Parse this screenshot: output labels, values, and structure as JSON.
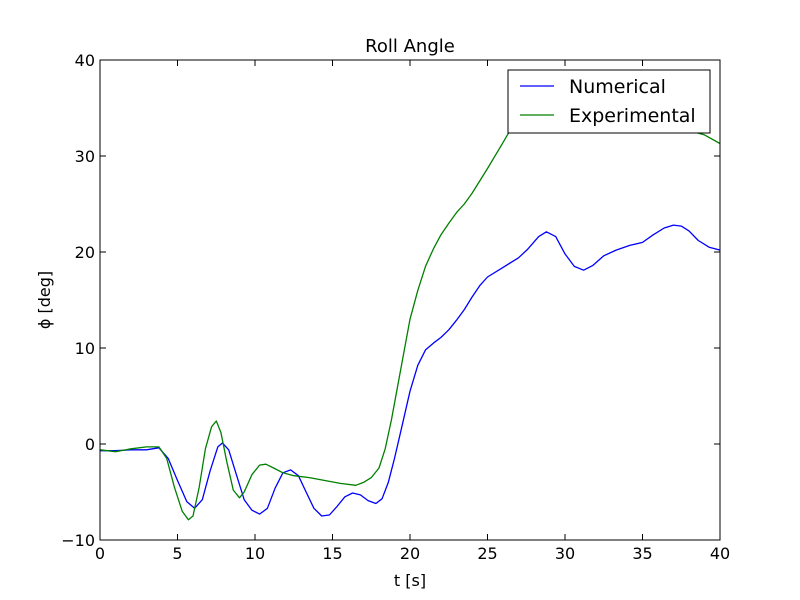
{
  "chart_data": {
    "type": "line",
    "title": "Roll Angle",
    "xlabel": "t [s]",
    "ylabel": "ϕ [deg]",
    "xlim": [
      0,
      40
    ],
    "ylim": [
      -10,
      40
    ],
    "xticks": [
      0,
      5,
      10,
      15,
      20,
      25,
      30,
      35,
      40
    ],
    "yticks": [
      -10,
      0,
      10,
      20,
      30,
      40
    ],
    "grid": false,
    "legend_position": "top-right",
    "series": [
      {
        "name": "Numerical",
        "color": "#0000ff",
        "x": [
          0,
          1,
          2,
          3,
          3.8,
          4.4,
          5,
          5.6,
          6.1,
          6.6,
          7.1,
          7.6,
          7.9,
          8.3,
          8.8,
          9.3,
          9.8,
          10.3,
          10.8,
          11.3,
          11.8,
          12.3,
          12.8,
          13.3,
          13.8,
          14.3,
          14.8,
          15.3,
          15.8,
          16.3,
          16.8,
          17.3,
          17.8,
          18.2,
          18.6,
          19,
          19.5,
          20,
          20.5,
          21,
          21.5,
          22,
          22.5,
          23,
          23.5,
          24,
          24.5,
          25,
          26,
          27,
          27.6,
          28.3,
          28.8,
          29.4,
          30,
          30.6,
          31.2,
          31.8,
          32.5,
          33.3,
          34.2,
          35,
          35.7,
          36.4,
          37,
          37.5,
          38,
          38.6,
          39.3,
          40
        ],
        "y": [
          -0.7,
          -0.7,
          -0.6,
          -0.6,
          -0.4,
          -1.5,
          -3.8,
          -6,
          -6.7,
          -5.8,
          -2.8,
          -0.3,
          0.1,
          -0.6,
          -3.2,
          -5.8,
          -6.9,
          -7.3,
          -6.7,
          -4.6,
          -3,
          -2.7,
          -3.3,
          -5,
          -6.7,
          -7.5,
          -7.4,
          -6.5,
          -5.5,
          -5.1,
          -5.3,
          -5.9,
          -6.2,
          -5.7,
          -4,
          -1.5,
          2,
          5.5,
          8.2,
          9.8,
          10.5,
          11.1,
          11.9,
          12.9,
          14,
          15.3,
          16.5,
          17.4,
          18.4,
          19.4,
          20.3,
          21.6,
          22.1,
          21.6,
          19.8,
          18.5,
          18.1,
          18.6,
          19.6,
          20.2,
          20.7,
          21,
          21.8,
          22.5,
          22.8,
          22.7,
          22.2,
          21.2,
          20.5,
          20.2
        ]
      },
      {
        "name": "Experimental",
        "color": "#008000",
        "x": [
          0,
          1,
          2,
          3,
          3.8,
          4.3,
          4.8,
          5.3,
          5.7,
          6,
          6.4,
          6.8,
          7.2,
          7.5,
          7.8,
          8.2,
          8.6,
          9,
          9.3,
          9.8,
          10.3,
          10.7,
          11.2,
          11.8,
          12.5,
          13.5,
          14.5,
          15.5,
          16.5,
          17,
          17.5,
          18,
          18.4,
          18.8,
          19.2,
          19.6,
          20,
          20.5,
          21,
          21.5,
          22,
          22.5,
          23,
          23.5,
          24,
          25,
          26,
          26.5,
          27,
          30,
          35,
          39,
          40
        ],
        "y": [
          -0.6,
          -0.8,
          -0.5,
          -0.3,
          -0.3,
          -1.5,
          -4.5,
          -7,
          -7.9,
          -7.5,
          -4.5,
          -0.5,
          1.8,
          2.4,
          1.2,
          -2,
          -4.8,
          -5.6,
          -5,
          -3.2,
          -2.2,
          -2.1,
          -2.5,
          -3,
          -3.3,
          -3.5,
          -3.8,
          -4.1,
          -4.3,
          -4,
          -3.5,
          -2.5,
          -0.5,
          2.5,
          6,
          9.5,
          13,
          16,
          18.5,
          20.3,
          21.8,
          23,
          24.1,
          25,
          26.1,
          28.7,
          31.4,
          32.8,
          33.5,
          34,
          34,
          32.2,
          31.3
        ]
      }
    ]
  }
}
